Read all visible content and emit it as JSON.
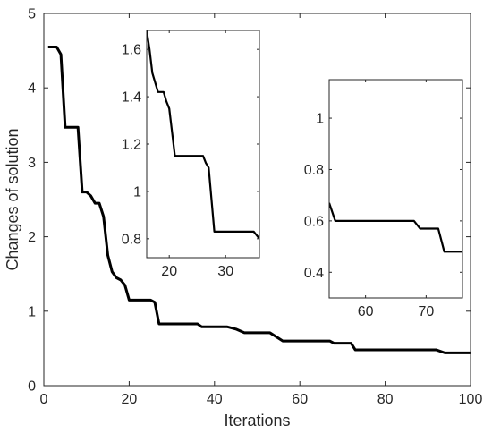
{
  "chart_data": [
    {
      "type": "line",
      "xlabel": "Iterations",
      "ylabel": "Changes of solution",
      "xlim": [
        0,
        100
      ],
      "ylim": [
        0,
        5
      ],
      "xticks": [
        "0",
        "20",
        "40",
        "60",
        "80",
        "100"
      ],
      "yticks": [
        "0",
        "1",
        "2",
        "3",
        "4",
        "5"
      ],
      "series": [
        {
          "color": "#000000",
          "points": [
            [
              1,
              4.55
            ],
            [
              3,
              4.55
            ],
            [
              4,
              4.45
            ],
            [
              5,
              3.47
            ],
            [
              8,
              3.47
            ],
            [
              9,
              2.6
            ],
            [
              10,
              2.6
            ],
            [
              11,
              2.55
            ],
            [
              12,
              2.45
            ],
            [
              13,
              2.45
            ],
            [
              14,
              2.27
            ],
            [
              15,
              1.75
            ],
            [
              16,
              1.53
            ],
            [
              17,
              1.45
            ],
            [
              18,
              1.42
            ],
            [
              19,
              1.35
            ],
            [
              20,
              1.15
            ],
            [
              25,
              1.15
            ],
            [
              26,
              1.12
            ],
            [
              27,
              0.83
            ],
            [
              36,
              0.83
            ],
            [
              37,
              0.79
            ],
            [
              43,
              0.79
            ],
            [
              45,
              0.76
            ],
            [
              47,
              0.71
            ],
            [
              53,
              0.71
            ],
            [
              56,
              0.6
            ],
            [
              67,
              0.6
            ],
            [
              68,
              0.57
            ],
            [
              72,
              0.57
            ],
            [
              73,
              0.48
            ],
            [
              92,
              0.48
            ],
            [
              94,
              0.44
            ],
            [
              100,
              0.44
            ]
          ]
        }
      ]
    },
    {
      "type": "line",
      "xlim": [
        16,
        36
      ],
      "ylim": [
        0.72,
        1.68
      ],
      "xticks": [
        "20",
        "30"
      ],
      "yticks": [
        "0.8",
        "1",
        "1.2",
        "1.4",
        "1.6"
      ],
      "series": [
        {
          "color": "#000000",
          "points": [
            [
              16,
              1.68
            ],
            [
              16.5,
              1.6
            ],
            [
              17,
              1.5
            ],
            [
              18,
              1.42
            ],
            [
              19,
              1.42
            ],
            [
              19.5,
              1.38
            ],
            [
              20,
              1.35
            ],
            [
              21,
              1.15
            ],
            [
              26,
              1.15
            ],
            [
              26.5,
              1.12
            ],
            [
              27,
              1.1
            ],
            [
              28,
              0.83
            ],
            [
              35,
              0.83
            ],
            [
              36,
              0.8
            ]
          ]
        }
      ]
    },
    {
      "type": "line",
      "xlim": [
        54,
        76
      ],
      "ylim": [
        0.3,
        1.15
      ],
      "xticks": [
        "60",
        "70"
      ],
      "yticks": [
        "0.4",
        "0.6",
        "0.8",
        "1"
      ],
      "series": [
        {
          "color": "#000000",
          "points": [
            [
              54,
              0.67
            ],
            [
              55,
              0.6
            ],
            [
              68,
              0.6
            ],
            [
              69,
              0.57
            ],
            [
              72,
              0.57
            ],
            [
              73,
              0.48
            ],
            [
              76,
              0.48
            ]
          ]
        }
      ]
    }
  ]
}
